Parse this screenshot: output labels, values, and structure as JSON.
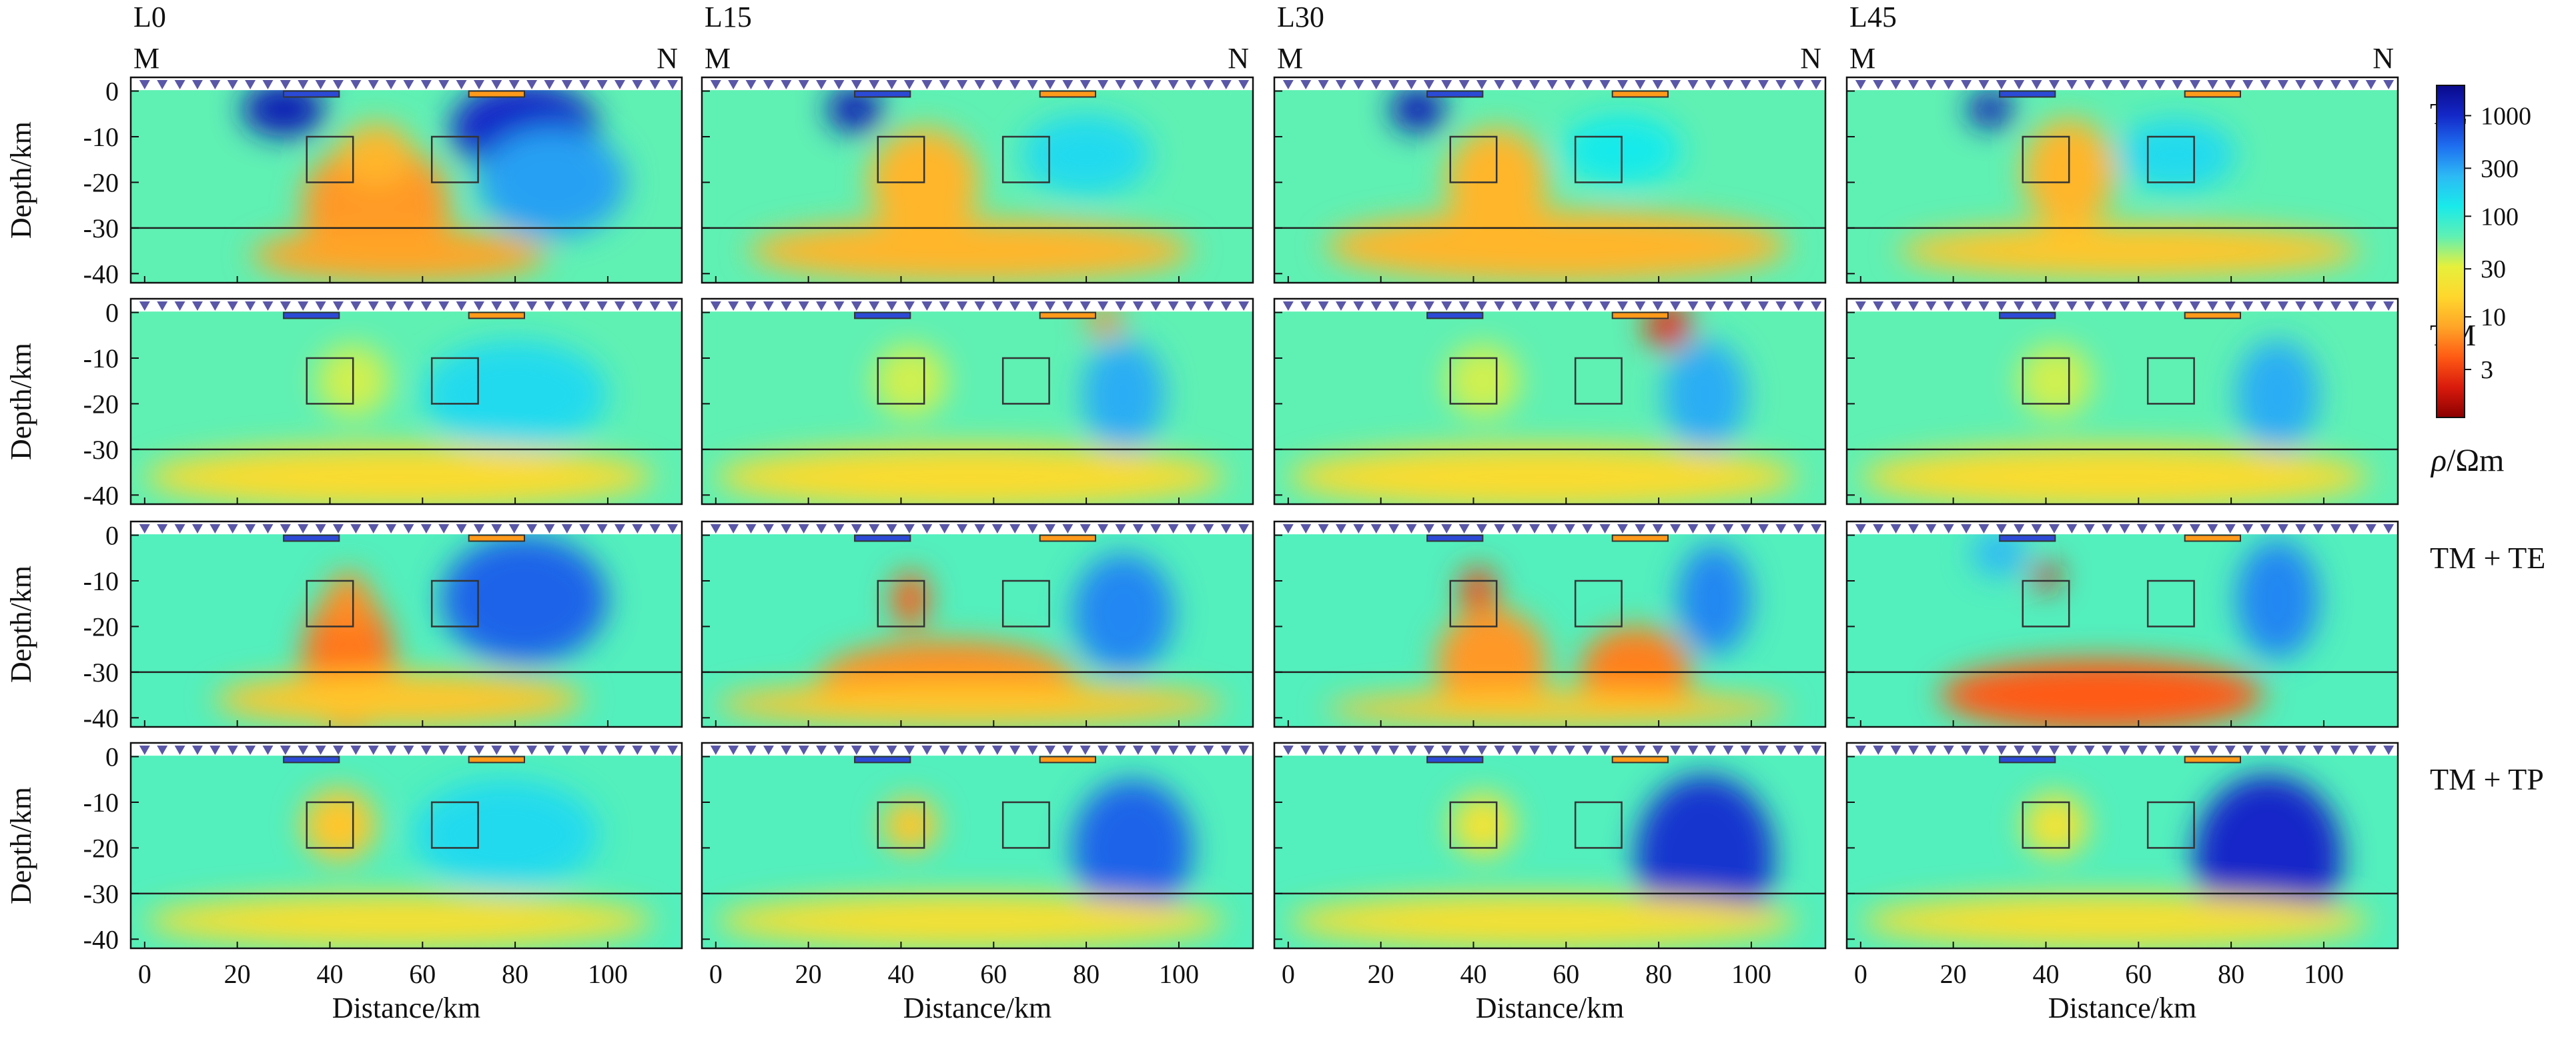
{
  "chart_data": {
    "type": "heatmap",
    "columns": [
      "L0",
      "L15",
      "L30",
      "L45"
    ],
    "rows": [
      "TE",
      "TM",
      "TM + TE",
      "TM + TP"
    ],
    "profile_end_labels": {
      "start": "M",
      "end": "N"
    },
    "xlabel": "Distance/km",
    "ylabel": "Depth/km",
    "xlim": [
      -3,
      116
    ],
    "ylim": [
      -42,
      3
    ],
    "x_ticks": [
      0,
      20,
      40,
      60,
      80,
      100
    ],
    "y_ticks": [
      0,
      -10,
      -20,
      -30,
      -40
    ],
    "colorbar": {
      "label": "ρ/Ωm",
      "ticks": [
        {
          "value": 1000,
          "label": "1000"
        },
        {
          "value": 300,
          "label": "300"
        },
        {
          "value": 100,
          "label": "100"
        },
        {
          "value": 30,
          "label": "30"
        },
        {
          "value": 10,
          "label": "10"
        },
        {
          "value": 3,
          "label": "3"
        }
      ],
      "log_range": [
        1,
        2000
      ]
    },
    "colormap": [
      "#8b0000",
      "#d91a0d",
      "#ff5a14",
      "#ffa528",
      "#ffd72d",
      "#e6f03c",
      "#5ff0b4",
      "#19eaea",
      "#2db9f5",
      "#1e6ef0",
      "#1428c8",
      "#0a0a8c"
    ],
    "moho_depth_km": -30,
    "stations": {
      "x_start": 0,
      "x_end": 114,
      "count": 31,
      "depth_km": 0.5
    },
    "surface_boxes": [
      {
        "x0": 30,
        "x1": 42,
        "y0": 0,
        "y1": -1.3,
        "color": "#2b4bd6"
      },
      {
        "x0": 70,
        "x1": 82,
        "y0": 0,
        "y1": -1.3,
        "color": "#ff9a1a"
      }
    ],
    "target_boxes": [
      {
        "x0": 35,
        "x1": 45,
        "y0": -10,
        "y1": -20
      },
      {
        "x0": 62,
        "x1": 72,
        "y0": -10,
        "y1": -20
      }
    ],
    "panels": [
      {
        "row": "TE",
        "column": "L0",
        "background_log10_rho": 1.8,
        "features": [
          {
            "x": 30,
            "z": -4,
            "rx": 9,
            "rz": 6,
            "log10_rho": 3.1
          },
          {
            "x": 82,
            "z": -8,
            "rx": 16,
            "rz": 10,
            "log10_rho": 3.0
          },
          {
            "x": 88,
            "z": -20,
            "rx": 16,
            "rz": 12,
            "log10_rho": 2.5
          },
          {
            "x": 50,
            "z": -25,
            "rx": 16,
            "rz": 14,
            "log10_rho": 0.85
          },
          {
            "x": 50,
            "z": -14,
            "rx": 8,
            "rz": 7,
            "log10_rho": 1.0
          },
          {
            "x": 55,
            "z": -36,
            "rx": 32,
            "rz": 6,
            "log10_rho": 0.9
          }
        ]
      },
      {
        "row": "TE",
        "column": "L15",
        "background_log10_rho": 1.8,
        "features": [
          {
            "x": 30,
            "z": -4,
            "rx": 6,
            "rz": 5,
            "log10_rho": 3.1
          },
          {
            "x": 80,
            "z": -14,
            "rx": 14,
            "rz": 9,
            "log10_rho": 2.2
          },
          {
            "x": 45,
            "z": -20,
            "rx": 12,
            "rz": 12,
            "log10_rho": 1.0
          },
          {
            "x": 55,
            "z": -35,
            "rx": 48,
            "rz": 7,
            "log10_rho": 1.0
          }
        ]
      },
      {
        "row": "TE",
        "column": "L30",
        "background_log10_rho": 1.8,
        "features": [
          {
            "x": 28,
            "z": -4,
            "rx": 6,
            "rz": 5,
            "log10_rho": 3.1
          },
          {
            "x": 72,
            "z": -13,
            "rx": 13,
            "rz": 8,
            "log10_rho": 2.1
          },
          {
            "x": 45,
            "z": -20,
            "rx": 11,
            "rz": 12,
            "log10_rho": 1.0
          },
          {
            "x": 58,
            "z": -34,
            "rx": 50,
            "rz": 8,
            "log10_rho": 1.0
          }
        ]
      },
      {
        "row": "TE",
        "column": "L45",
        "background_log10_rho": 1.8,
        "features": [
          {
            "x": 28,
            "z": -4,
            "rx": 5,
            "rz": 4,
            "log10_rho": 3.1
          },
          {
            "x": 68,
            "z": -14,
            "rx": 13,
            "rz": 8,
            "log10_rho": 2.2
          },
          {
            "x": 45,
            "z": -18,
            "rx": 10,
            "rz": 12,
            "log10_rho": 1.0
          },
          {
            "x": 58,
            "z": -35,
            "rx": 50,
            "rz": 6,
            "log10_rho": 1.1
          }
        ]
      },
      {
        "row": "TM",
        "column": "L0",
        "background_log10_rho": 1.8,
        "features": [
          {
            "x": 80,
            "z": -18,
            "rx": 20,
            "rz": 12,
            "log10_rho": 2.2
          },
          {
            "x": 45,
            "z": -15,
            "rx": 8,
            "rz": 8,
            "log10_rho": 1.55
          },
          {
            "x": 55,
            "z": -36,
            "rx": 55,
            "rz": 7,
            "log10_rho": 1.25
          }
        ]
      },
      {
        "row": "TM",
        "column": "L15",
        "background_log10_rho": 1.8,
        "features": [
          {
            "x": 88,
            "z": -18,
            "rx": 9,
            "rz": 12,
            "log10_rho": 2.45
          },
          {
            "x": 84,
            "z": -2,
            "rx": 4,
            "rz": 3,
            "log10_rho": 0.8
          },
          {
            "x": 42,
            "z": -15,
            "rx": 8,
            "rz": 8,
            "log10_rho": 1.55
          },
          {
            "x": 55,
            "z": -36,
            "rx": 55,
            "rz": 7,
            "log10_rho": 1.25
          }
        ]
      },
      {
        "row": "TM",
        "column": "L30",
        "background_log10_rho": 1.8,
        "features": [
          {
            "x": 90,
            "z": -18,
            "rx": 9,
            "rz": 12,
            "log10_rho": 2.45
          },
          {
            "x": 82,
            "z": -3,
            "rx": 5,
            "rz": 5,
            "log10_rho": 0.4
          },
          {
            "x": 42,
            "z": -15,
            "rx": 8,
            "rz": 8,
            "log10_rho": 1.55
          },
          {
            "x": 55,
            "z": -36,
            "rx": 55,
            "rz": 7,
            "log10_rho": 1.25
          }
        ]
      },
      {
        "row": "TM",
        "column": "L45",
        "background_log10_rho": 1.8,
        "features": [
          {
            "x": 90,
            "z": -18,
            "rx": 9,
            "rz": 12,
            "log10_rho": 2.45
          },
          {
            "x": 42,
            "z": -15,
            "rx": 8,
            "rz": 8,
            "log10_rho": 1.55
          },
          {
            "x": 55,
            "z": -36,
            "rx": 55,
            "rz": 7,
            "log10_rho": 1.25
          }
        ]
      },
      {
        "row": "TM + TE",
        "column": "L0",
        "background_log10_rho": 1.85,
        "features": [
          {
            "x": 82,
            "z": -14,
            "rx": 18,
            "rz": 14,
            "log10_rho": 2.75
          },
          {
            "x": 44,
            "z": -28,
            "rx": 10,
            "rz": 16,
            "log10_rho": 0.7
          },
          {
            "x": 44,
            "z": -15,
            "rx": 5,
            "rz": 7,
            "log10_rho": 0.8
          },
          {
            "x": 55,
            "z": -36,
            "rx": 40,
            "rz": 6,
            "log10_rho": 1.1
          }
        ]
      },
      {
        "row": "TM + TE",
        "column": "L15",
        "background_log10_rho": 1.85,
        "features": [
          {
            "x": 88,
            "z": -17,
            "rx": 11,
            "rz": 13,
            "log10_rho": 2.6
          },
          {
            "x": 42,
            "z": -14,
            "rx": 4,
            "rz": 6,
            "log10_rho": 0.6
          },
          {
            "x": 50,
            "z": -32,
            "rx": 28,
            "rz": 9,
            "log10_rho": 0.8
          },
          {
            "x": 55,
            "z": -37,
            "rx": 55,
            "rz": 5,
            "log10_rho": 1.1
          }
        ]
      },
      {
        "row": "TM + TE",
        "column": "L30",
        "background_log10_rho": 1.85,
        "features": [
          {
            "x": 92,
            "z": -14,
            "rx": 8,
            "rz": 12,
            "log10_rho": 2.6
          },
          {
            "x": 41,
            "z": -12,
            "rx": 4,
            "rz": 5,
            "log10_rho": 0.5
          },
          {
            "x": 44,
            "z": -28,
            "rx": 12,
            "rz": 12,
            "log10_rho": 0.85
          },
          {
            "x": 75,
            "z": -30,
            "rx": 12,
            "rz": 10,
            "log10_rho": 0.75
          },
          {
            "x": 58,
            "z": -38,
            "rx": 50,
            "rz": 4,
            "log10_rho": 1.1
          }
        ]
      },
      {
        "row": "TM + TE",
        "column": "L45",
        "background_log10_rho": 1.85,
        "features": [
          {
            "x": 90,
            "z": -14,
            "rx": 9,
            "rz": 13,
            "log10_rho": 2.6
          },
          {
            "x": 40,
            "z": -9,
            "rx": 3,
            "rz": 3,
            "log10_rho": 0.3
          },
          {
            "x": 30,
            "z": -4,
            "rx": 6,
            "rz": 5,
            "log10_rho": 2.4
          },
          {
            "x": 52,
            "z": -35,
            "rx": 35,
            "rz": 8,
            "log10_rho": 0.6
          }
        ]
      },
      {
        "row": "TM + TP",
        "column": "L0",
        "background_log10_rho": 1.85,
        "features": [
          {
            "x": 42,
            "z": -14,
            "rx": 3,
            "rz": 3,
            "log10_rho": 0.5
          },
          {
            "x": 42,
            "z": -15,
            "rx": 8,
            "rz": 8,
            "log10_rho": 1.1
          },
          {
            "x": 78,
            "z": -17,
            "rx": 20,
            "rz": 12,
            "log10_rho": 2.2
          },
          {
            "x": 55,
            "z": -36,
            "rx": 55,
            "rz": 6,
            "log10_rho": 1.3
          }
        ]
      },
      {
        "row": "TM + TP",
        "column": "L15",
        "background_log10_rho": 1.85,
        "features": [
          {
            "x": 90,
            "z": -20,
            "rx": 13,
            "rz": 15,
            "log10_rho": 2.75
          },
          {
            "x": 42,
            "z": -15,
            "rx": 6,
            "rz": 6,
            "log10_rho": 1.1
          },
          {
            "x": 55,
            "z": -36,
            "rx": 55,
            "rz": 6,
            "log10_rho": 1.3
          }
        ]
      },
      {
        "row": "TM + TP",
        "column": "L30",
        "background_log10_rho": 1.85,
        "features": [
          {
            "x": 90,
            "z": -22,
            "rx": 15,
            "rz": 18,
            "log10_rho": 2.95
          },
          {
            "x": 42,
            "z": -15,
            "rx": 7,
            "rz": 7,
            "log10_rho": 1.35
          },
          {
            "x": 55,
            "z": -36,
            "rx": 55,
            "rz": 6,
            "log10_rho": 1.3
          }
        ]
      },
      {
        "row": "TM + TP",
        "column": "L45",
        "background_log10_rho": 1.85,
        "features": [
          {
            "x": 88,
            "z": -22,
            "rx": 16,
            "rz": 18,
            "log10_rho": 3.0
          },
          {
            "x": 42,
            "z": -15,
            "rx": 7,
            "rz": 7,
            "log10_rho": 1.35
          },
          {
            "x": 55,
            "z": -36,
            "rx": 55,
            "rz": 6,
            "log10_rho": 1.3
          }
        ]
      }
    ]
  }
}
